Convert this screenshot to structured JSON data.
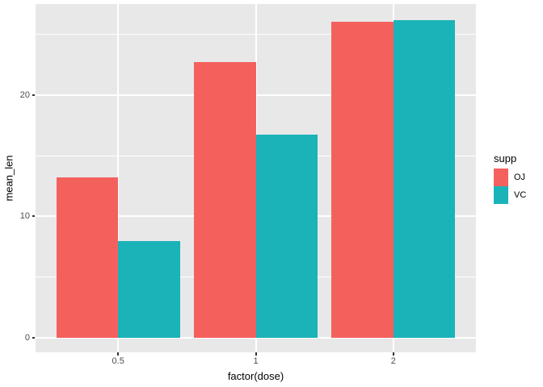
{
  "chart_data": {
    "type": "bar",
    "title": "",
    "xlabel": "factor(dose)",
    "ylabel": "mean_len",
    "legend_title": "supp",
    "legend_position": "right",
    "categories": [
      "0.5",
      "1",
      "2"
    ],
    "series": [
      {
        "name": "OJ",
        "color": "#F4615D",
        "values": [
          13.23,
          22.7,
          26.06
        ]
      },
      {
        "name": "VC",
        "color": "#1AB3B8",
        "values": [
          7.98,
          16.77,
          26.14
        ]
      }
    ],
    "ylim": [
      -1.2,
      27.5
    ],
    "y_ticks": [
      {
        "value": 0,
        "label": "0"
      },
      {
        "value": 10,
        "label": "10"
      },
      {
        "value": 20,
        "label": "20"
      }
    ],
    "y_minor_breaks": [
      5,
      15,
      25
    ],
    "grid": "major+minor, white on gray panel",
    "colors": {
      "panel_bg": "#E8E8E8",
      "grid": "#FFFFFF",
      "tick_label": "#4D4D4D",
      "tick_mark": "#333333",
      "background": "#FFFFFF"
    }
  }
}
